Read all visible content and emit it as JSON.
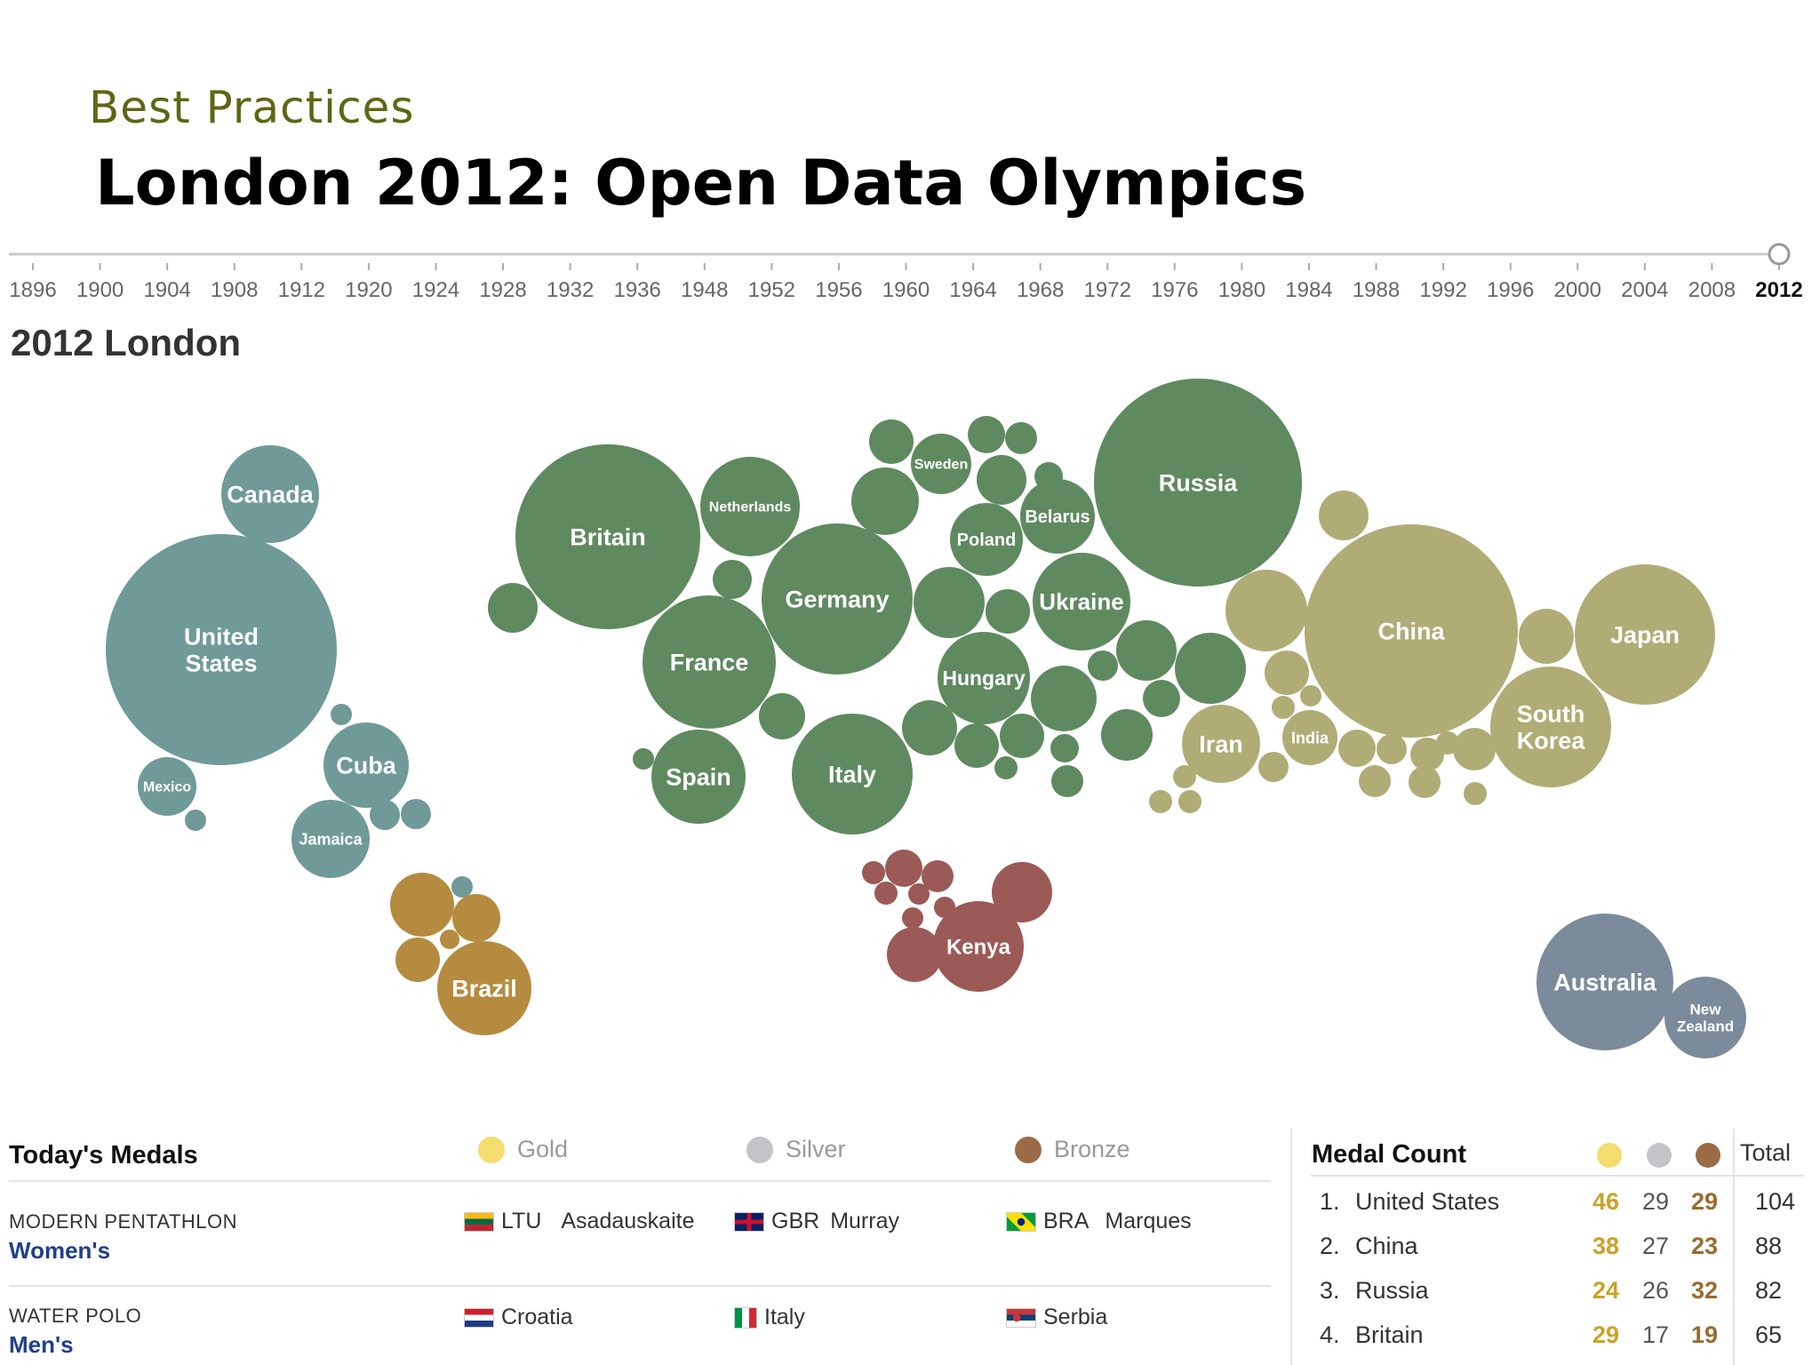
{
  "slide": {
    "eyebrow": "Best Practices",
    "title": "London 2012: Open Data Olympics"
  },
  "timeline": {
    "years": [
      "1896",
      "1900",
      "1904",
      "1908",
      "1912",
      "1920",
      "1924",
      "1928",
      "1932",
      "1936",
      "1948",
      "1952",
      "1956",
      "1960",
      "1964",
      "1968",
      "1972",
      "1976",
      "1980",
      "1984",
      "1988",
      "1992",
      "1996",
      "2000",
      "2004",
      "2008",
      "2012"
    ],
    "selected": "2012"
  },
  "edition_title": "2012 London",
  "regions": {
    "americas": "#6f9a98",
    "south_america": "#b58b3f",
    "europe": "#5f8a5f",
    "asia": "#b0ac76",
    "africa": "#9b5a55",
    "oceania": "#7b8b9b"
  },
  "bubbles": [
    {
      "label": "Canada",
      "region": "americas"
    },
    {
      "label": "United States",
      "region": "americas"
    },
    {
      "label": "Mexico",
      "region": "americas"
    },
    {
      "label": "Cuba",
      "region": "americas"
    },
    {
      "label": "Jamaica",
      "region": "americas"
    },
    {
      "label": "Brazil",
      "region": "south_america"
    },
    {
      "label": "Britain",
      "region": "europe"
    },
    {
      "label": "Netherlands",
      "region": "europe"
    },
    {
      "label": "Germany",
      "region": "europe"
    },
    {
      "label": "France",
      "region": "europe"
    },
    {
      "label": "Spain",
      "region": "europe"
    },
    {
      "label": "Italy",
      "region": "europe"
    },
    {
      "label": "Sweden",
      "region": "europe"
    },
    {
      "label": "Belarus",
      "region": "europe"
    },
    {
      "label": "Poland",
      "region": "europe"
    },
    {
      "label": "Ukraine",
      "region": "europe"
    },
    {
      "label": "Hungary",
      "region": "europe"
    },
    {
      "label": "Russia",
      "region": "europe"
    },
    {
      "label": "Iran",
      "region": "asia"
    },
    {
      "label": "India",
      "region": "asia"
    },
    {
      "label": "China",
      "region": "asia"
    },
    {
      "label": "Japan",
      "region": "asia"
    },
    {
      "label": "South Korea",
      "region": "asia"
    },
    {
      "label": "Kenya",
      "region": "africa"
    },
    {
      "label": "Australia",
      "region": "oceania"
    },
    {
      "label": "New Zealand",
      "region": "oceania"
    }
  ],
  "todays_medals": {
    "title": "Today's Medals",
    "legend": [
      {
        "label": "Gold",
        "color": "#f4dc6f"
      },
      {
        "label": "Silver",
        "color": "#c4c4c8"
      },
      {
        "label": "Bronze",
        "color": "#9a6b45"
      }
    ],
    "events": [
      {
        "sport": "MODERN PENTATHLON",
        "event": "Women's",
        "medalists": [
          {
            "flag": "flag-ltu",
            "code": "LTU",
            "name": "Asadauskaite"
          },
          {
            "flag": "flag-gbr",
            "code": "GBR",
            "name": "Murray"
          },
          {
            "flag": "flag-bra",
            "code": "BRA",
            "name": "Marques"
          }
        ]
      },
      {
        "sport": "WATER POLO",
        "event": "Men's",
        "medalists": [
          {
            "flag": "flag-cro",
            "code": "Croatia",
            "name": ""
          },
          {
            "flag": "flag-ita",
            "code": "Italy",
            "name": ""
          },
          {
            "flag": "flag-srb",
            "code": "Serbia",
            "name": ""
          }
        ]
      }
    ]
  },
  "medal_count": {
    "title": "Medal Count",
    "total_label": "Total",
    "rows": [
      {
        "rank": "1.",
        "country": "United States",
        "gold": "46",
        "silver": "29",
        "bronze": "29",
        "total": "104"
      },
      {
        "rank": "2.",
        "country": "China",
        "gold": "38",
        "silver": "27",
        "bronze": "23",
        "total": "88"
      },
      {
        "rank": "3.",
        "country": "Russia",
        "gold": "24",
        "silver": "26",
        "bronze": "32",
        "total": "82"
      },
      {
        "rank": "4.",
        "country": "Britain",
        "gold": "29",
        "silver": "17",
        "bronze": "19",
        "total": "65"
      }
    ]
  }
}
